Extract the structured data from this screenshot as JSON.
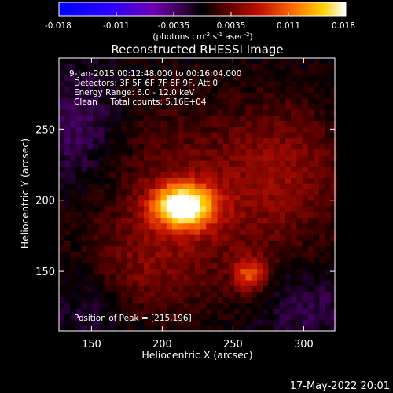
{
  "chart_data": {
    "type": "heatmap",
    "title": "Reconstructed RHESSI Image",
    "xlabel": "Heliocentric X (arcsec)",
    "ylabel": "Heliocentric Y (arcsec)",
    "xlim": [
      127,
      322
    ],
    "ylim": [
      108,
      300
    ],
    "x_ticks": [
      150,
      200,
      250,
      300
    ],
    "y_ticks": [
      150,
      200,
      250
    ],
    "colorbar": {
      "range": [
        -0.018,
        0.018
      ],
      "ticks": [
        "-0.018",
        "-0.011",
        "-0.0035",
        "0.0035",
        "0.011",
        "0.018"
      ],
      "unit_text": "(photons cm",
      "unit_sup1": "-2",
      "unit_mid": " s",
      "unit_sup2": "-1",
      "unit_mid2": " asec",
      "unit_sup3": "-2",
      "unit_end": ")"
    },
    "annotations": [
      "9-Jan-2015 00:12:48.000 to 00:16:04.000",
      "Detectors: 3F 5F 6F 7F 8F 9F, Att 0",
      "Energy Range: 6.0 - 12.0 keV",
      "Clean     Total counts: 5.16E+04"
    ],
    "peak_label": "Position of Peak = [215,196]",
    "sources": [
      {
        "x": 215,
        "y": 196,
        "peak": 0.018
      },
      {
        "x": 262,
        "y": 148,
        "peak": 0.0085
      }
    ]
  },
  "footer": {
    "timestamp": "17-May-2022 20:01"
  }
}
